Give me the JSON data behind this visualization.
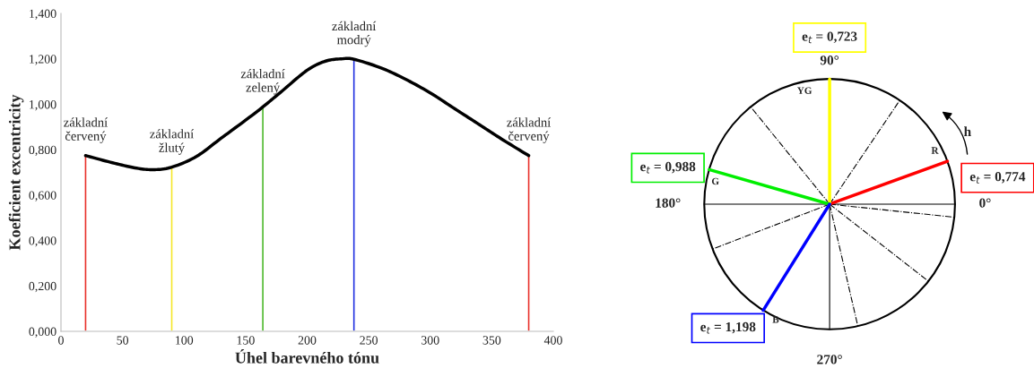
{
  "chart_data": [
    {
      "type": "line",
      "xlabel": "Úhel barevného tónu",
      "ylabel": "Koeficient excentricity",
      "xlim": [
        0,
        400
      ],
      "xticks": [
        0,
        50,
        100,
        150,
        200,
        250,
        300,
        350,
        400
      ],
      "ylim": [
        0,
        1.4
      ],
      "yticks": [
        {
          "value": 0,
          "label": "0,000"
        },
        {
          "value": 0.2,
          "label": "0,200"
        },
        {
          "value": 0.4,
          "label": "0,400"
        },
        {
          "value": 0.6,
          "label": "0,600"
        },
        {
          "value": 0.8,
          "label": "0,800"
        },
        {
          "value": 1.0,
          "label": "1,000"
        },
        {
          "value": 1.2,
          "label": "1,200"
        },
        {
          "value": 1.4,
          "label": "1,400"
        }
      ],
      "grid": false,
      "legend": false,
      "series": [
        {
          "type": "line",
          "color": "#000000",
          "x": [
            20,
            40,
            60,
            75,
            90,
            110,
            130,
            150,
            164,
            180,
            200,
            215,
            228,
            238,
            260,
            280,
            300,
            320,
            340,
            360,
            380
          ],
          "values": [
            0.774,
            0.745,
            0.72,
            0.712,
            0.723,
            0.77,
            0.85,
            0.93,
            0.988,
            1.06,
            1.15,
            1.19,
            1.2,
            1.198,
            1.16,
            1.11,
            1.05,
            0.98,
            0.91,
            0.84,
            0.774
          ]
        },
        {
          "type": "bar",
          "x": [
            20,
            90,
            164,
            238,
            380
          ],
          "values": [
            0.774,
            0.723,
            0.988,
            1.198,
            0.774
          ],
          "colors": [
            "#e8302a",
            "#f5e72a",
            "#4cb82c",
            "#1f2fe0",
            "#e8302a"
          ]
        }
      ],
      "annotations": [
        {
          "text": "základní\nčervený",
          "x": 20,
          "y": 0.774
        },
        {
          "text": "základní\nžlutý",
          "x": 90,
          "y": 0.723
        },
        {
          "text": "základní\nzelený",
          "x": 164,
          "y": 0.988
        },
        {
          "text": "základní\nmodrý",
          "x": 238,
          "y": 1.198
        },
        {
          "text": "základní\nčervený",
          "x": 380,
          "y": 0.774
        }
      ]
    },
    {
      "type": "other",
      "categories": [
        "R",
        "YG",
        "G",
        "B"
      ],
      "colors": [
        "#ff0000",
        "#ffff00",
        "#00ee00",
        "#0000ff"
      ],
      "value_labels": [
        "e$_{t}$ = 0,774",
        "e$_{t}$ = 0,723",
        "e$_{t}$ = 0,988",
        "e$_{t}$ = 1,198"
      ],
      "annotations": [
        "0°",
        "90°",
        "180°",
        "270°",
        "h"
      ]
    }
  ]
}
